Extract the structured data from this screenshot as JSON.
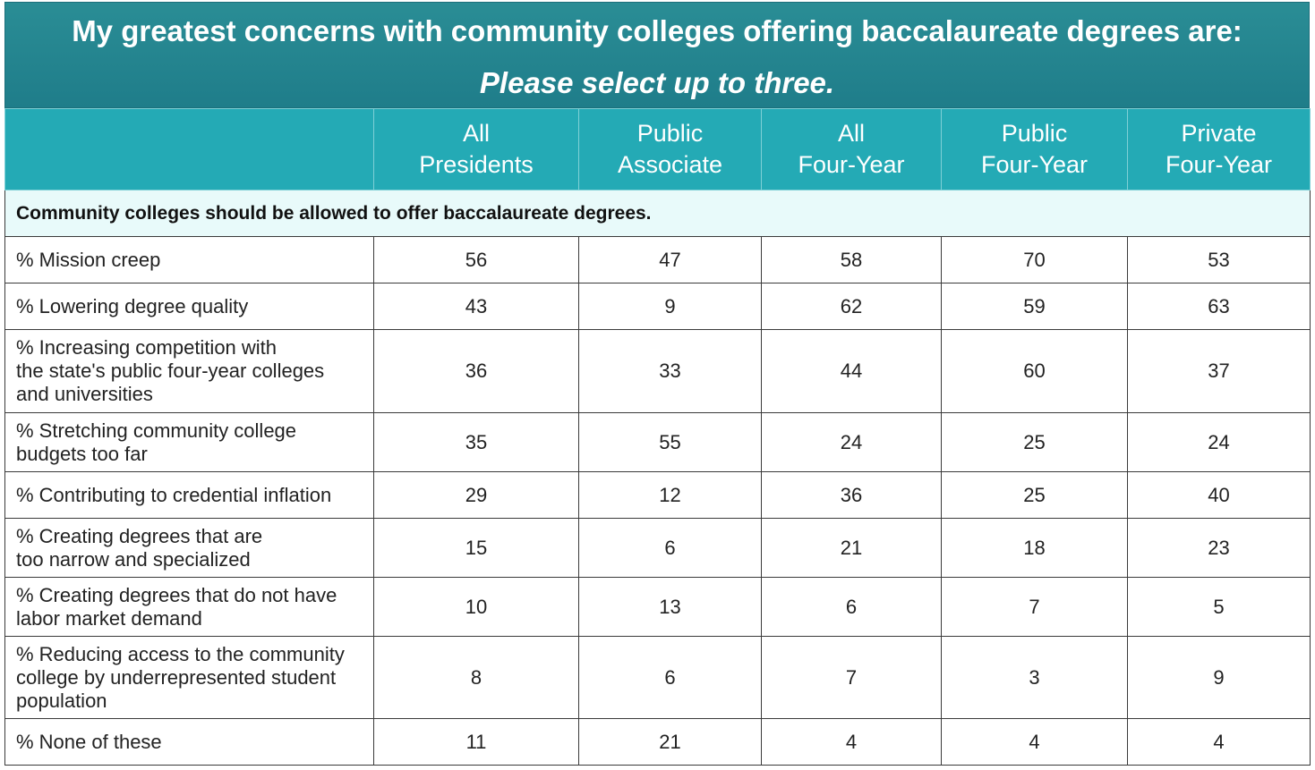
{
  "title": "My greatest concerns with community colleges offering baccalaureate degrees are:",
  "subtitle": "Please select up to three.",
  "chart_data": {
    "type": "table",
    "columns": [
      {
        "line1": "All",
        "line2": "Presidents"
      },
      {
        "line1": "Public",
        "line2": "Associate"
      },
      {
        "line1": "All",
        "line2": "Four-Year"
      },
      {
        "line1": "Public",
        "line2": "Four-Year"
      },
      {
        "line1": "Private",
        "line2": "Four-Year"
      }
    ],
    "section_label": "Community colleges should be allowed to offer baccalaureate degrees.",
    "rows": [
      {
        "label": "% Mission creep",
        "values": [
          56,
          47,
          58,
          70,
          53
        ]
      },
      {
        "label": "% Lowering degree quality",
        "values": [
          43,
          9,
          62,
          59,
          63
        ]
      },
      {
        "label": "% Increasing competition with\nthe state's public four-year colleges\nand universities",
        "values": [
          36,
          33,
          44,
          60,
          37
        ]
      },
      {
        "label": "% Stretching community college\nbudgets too far",
        "values": [
          35,
          55,
          24,
          25,
          24
        ]
      },
      {
        "label": "% Contributing to credential inflation",
        "values": [
          29,
          12,
          36,
          25,
          40
        ]
      },
      {
        "label": "% Creating degrees that are\ntoo narrow and specialized",
        "values": [
          15,
          6,
          21,
          18,
          23
        ]
      },
      {
        "label": "% Creating degrees that do not have\nlabor market demand",
        "values": [
          10,
          13,
          6,
          7,
          5
        ]
      },
      {
        "label": "% Reducing access to the community\ncollege by underrepresented student\npopulation",
        "values": [
          8,
          6,
          7,
          3,
          9
        ]
      },
      {
        "label": "% None of these",
        "values": [
          11,
          21,
          4,
          4,
          4
        ]
      }
    ]
  }
}
